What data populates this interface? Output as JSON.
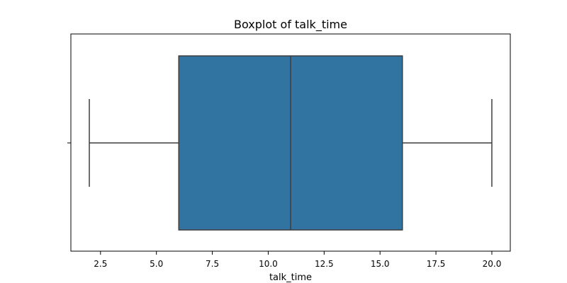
{
  "chart_data": {
    "type": "boxplot",
    "title": "Boxplot of talk_time",
    "xlabel": "talk_time",
    "ylabel": "",
    "orientation": "horizontal",
    "xlim": [
      1.175,
      20.825
    ],
    "x_ticks": [
      2.5,
      5.0,
      7.5,
      10.0,
      12.5,
      15.0,
      17.5,
      20.0
    ],
    "x_tick_labels": [
      "2.5",
      "5.0",
      "7.5",
      "10.0",
      "12.5",
      "15.0",
      "17.5",
      "20.0"
    ],
    "grid": false,
    "box": {
      "whisker_low": 2.0,
      "q1": 6.0,
      "median": 11.0,
      "q3": 16.0,
      "whisker_high": 20.0,
      "fill_color": "#3274a1",
      "line_color": "#3d3d3d"
    }
  }
}
